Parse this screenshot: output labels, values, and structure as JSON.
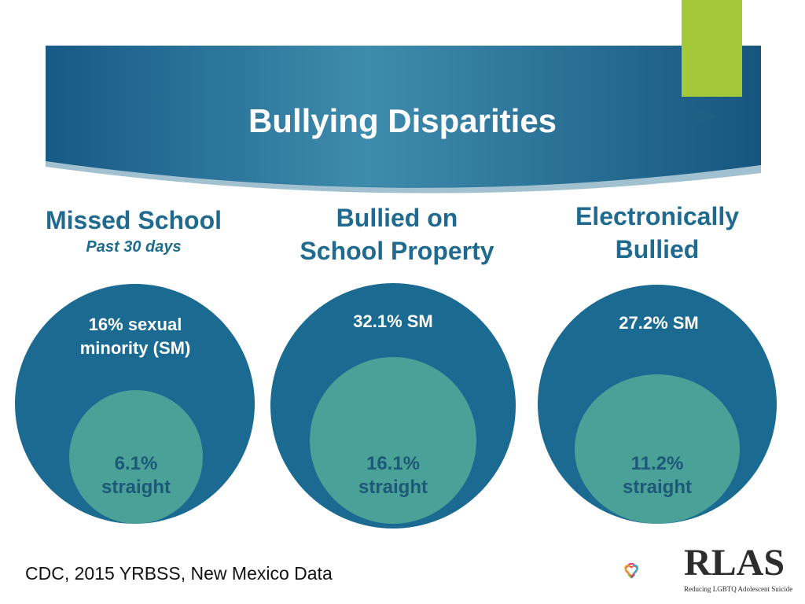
{
  "title": "Bullying Disparities",
  "colors": {
    "banner_dark": "#175a85",
    "banner_light": "#3e8cad",
    "accent": "#a3c83a",
    "outer_circle": "#1a6a91",
    "inner_circle": "#4aa197",
    "heading": "#1f6a8e"
  },
  "panels": [
    {
      "heading": [
        "Missed School"
      ],
      "subheading": "Past 30 days",
      "sm_label": [
        "16% sexual",
        "minority (SM)"
      ],
      "straight_label": [
        "6.1%",
        "straight"
      ],
      "sm_value": 16,
      "straight_value": 6.1
    },
    {
      "heading": [
        "Bullied on",
        "School Property"
      ],
      "subheading": "",
      "sm_label": [
        "32.1% SM"
      ],
      "straight_label": [
        "16.1%",
        "straight"
      ],
      "sm_value": 32.1,
      "straight_value": 16.1
    },
    {
      "heading": [
        "Electronically",
        "Bullied"
      ],
      "subheading": "",
      "sm_label": [
        "27.2% SM"
      ],
      "straight_label": [
        "11.2%",
        "straight"
      ],
      "sm_value": 27.2,
      "straight_value": 11.2
    }
  ],
  "citation": "CDC, 2015 YRBSS, New Mexico Data",
  "logo": {
    "name": "RLAS",
    "tagline": "Reducing LGBTQ Adolescent Suicide",
    "icon": "hearts-logo-icon"
  }
}
